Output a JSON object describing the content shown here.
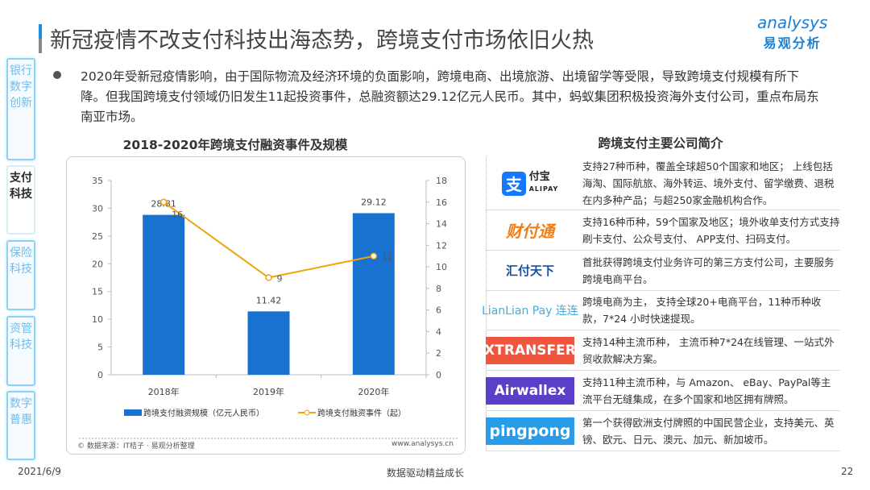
{
  "header": {
    "title": "新冠疫情不改支付科技出海态势，跨境支付市场依旧火热",
    "logo_en": "analysys",
    "logo_cn": "易观分析"
  },
  "sidebar": {
    "tabs": [
      {
        "label": "银行数字创新",
        "active": false
      },
      {
        "label": "支付科技",
        "active": true
      },
      {
        "label": "保险科技",
        "active": false
      },
      {
        "label": "资管科技",
        "active": false
      },
      {
        "label": "数字普惠",
        "active": false
      }
    ]
  },
  "bullet": "2020年受新冠疫情影响，由于国际物流及经济环境的负面影响，跨境电商、出境旅游、出境留学等受限，导致跨境支付规模有所下降。但我国跨境支付领域仍旧发生11起投资事件，总融资额达29.12亿元人民币。其中，蚂蚁集团积极投资海外支付公司，重点布局东南亚市场。",
  "chart_data": {
    "type": "bar+line",
    "title": "2018-2020年跨境支付融资事件及规模",
    "categories": [
      "2018年",
      "2019年",
      "2020年"
    ],
    "series": [
      {
        "name": "跨境支付融资规模（亿元人民币）",
        "type": "bar",
        "axis": "left",
        "values": [
          28.81,
          11.42,
          29.12
        ],
        "labels": [
          "28.81",
          "11.42",
          "29.12"
        ],
        "color": "#1a72d0"
      },
      {
        "name": "跨境支付融资事件（起）",
        "type": "line",
        "axis": "right",
        "values": [
          16,
          9,
          11
        ],
        "labels": [
          "16",
          "9",
          "11"
        ],
        "color": "#f0a30a"
      }
    ],
    "left_axis": {
      "ylim": [
        0,
        35
      ],
      "ticks": [
        "0",
        "5",
        "10",
        "15",
        "20",
        "25",
        "30",
        "35"
      ]
    },
    "right_axis": {
      "ylim": [
        0,
        18
      ],
      "ticks": [
        "0",
        "2",
        "4",
        "6",
        "8",
        "10",
        "12",
        "14",
        "16",
        "18"
      ]
    },
    "legend": "bottom",
    "grid": false,
    "source": "© 数据来源：IT桔子 · 易观分析整理",
    "site": "www.analysys.cn"
  },
  "companies": {
    "title": "跨境支付主要公司简介",
    "items": [
      {
        "logo": "支付宝 ALIPAY",
        "desc": "支持27种币种，覆盖全球超50个国家和地区； 上线包括海淘、国际航旅、海外转运、境外支付、留学缴费、退税在内多种产品；与超250家金融机构合作。"
      },
      {
        "logo": "财付通",
        "desc": "支持16种币种，59个国家及地区；境外收单支付方式支持刷卡支付、公众号支付、 APP支付、扫码支付。"
      },
      {
        "logo": "汇付天下",
        "desc": "首批获得跨境支付业务许可的第三方支付公司，主要服务跨境电商平台。"
      },
      {
        "logo": "LianLian Pay 连连",
        "desc": "跨境电商为主， 支持全球20+电商平台，11种币种收款，7*24 小时快速提现。"
      },
      {
        "logo": "XTRANSFER",
        "desc": "支持14种主流币种， 主流币种7*24在线管理、一站式外贸收款解决方案。"
      },
      {
        "logo": "Airwallex",
        "desc": "支持11种主流币种，与 Amazon、 eBay、PayPal等主流平台无缝集成，在多个国家和地区拥有牌照。"
      },
      {
        "logo": "pingpong",
        "desc": "第一个获得欧洲支付牌照的中国民营企业，支持美元、英镑、欧元、日元、澳元、加元、新加坡币。"
      }
    ]
  },
  "footer": {
    "date": "2021/6/9",
    "slogan": "数据驱动精益成长",
    "page": "22"
  }
}
